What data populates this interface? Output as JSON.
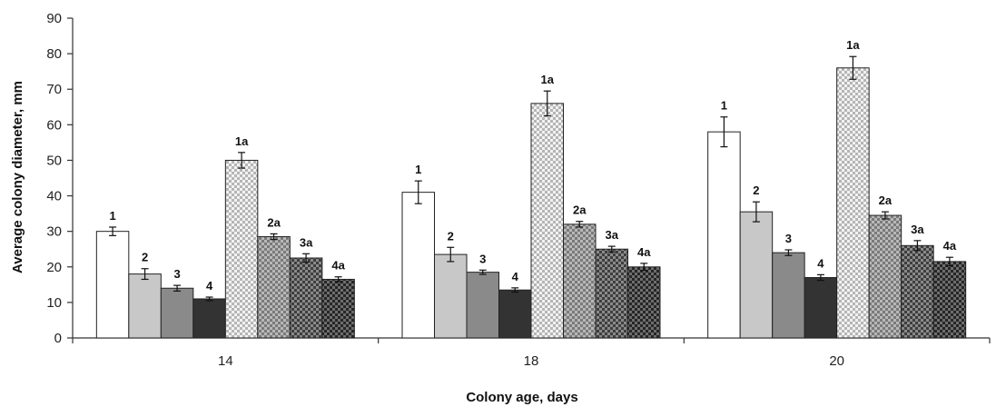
{
  "chart_data": {
    "type": "bar",
    "xlabel": "Colony age, days",
    "ylabel": "Average colony diameter, mm",
    "ylim": [
      0,
      90
    ],
    "yticks": [
      0,
      10,
      20,
      30,
      40,
      50,
      60,
      70,
      80,
      90
    ],
    "grid": false,
    "categories": [
      "14",
      "18",
      "20"
    ],
    "series": [
      {
        "name": "1",
        "values": [
          30,
          41,
          58
        ],
        "errors": [
          1.2,
          3.2,
          4.2
        ],
        "fill": "#ffffff",
        "pattern": "none"
      },
      {
        "name": "2",
        "values": [
          18,
          23.5,
          35.5
        ],
        "errors": [
          1.5,
          2.0,
          2.8
        ],
        "fill": "#c8c8c8",
        "pattern": "none"
      },
      {
        "name": "3",
        "values": [
          14,
          18.5,
          24
        ],
        "errors": [
          0.8,
          0.6,
          0.8
        ],
        "fill": "#8a8a8a",
        "pattern": "none"
      },
      {
        "name": "4",
        "values": [
          11,
          13.5,
          17
        ],
        "errors": [
          0.5,
          0.6,
          0.8
        ],
        "fill": "#333333",
        "pattern": "none"
      },
      {
        "name": "1a",
        "values": [
          50,
          66,
          76
        ],
        "errors": [
          2.2,
          3.5,
          3.2
        ],
        "fill": "#e6e6e6",
        "pattern": "light-check"
      },
      {
        "name": "2a",
        "values": [
          28.5,
          32,
          34.5
        ],
        "errors": [
          0.8,
          0.8,
          1.0
        ],
        "fill": "#a0a0a0",
        "pattern": "mid-check"
      },
      {
        "name": "3a",
        "values": [
          22.5,
          25,
          26
        ],
        "errors": [
          1.2,
          0.8,
          1.4
        ],
        "fill": "#6a6a6a",
        "pattern": "dark-check"
      },
      {
        "name": "4a",
        "values": [
          16.5,
          20,
          21.5
        ],
        "errors": [
          0.7,
          1.0,
          1.2
        ],
        "fill": "#4a4a4a",
        "pattern": "darker-check"
      }
    ]
  }
}
